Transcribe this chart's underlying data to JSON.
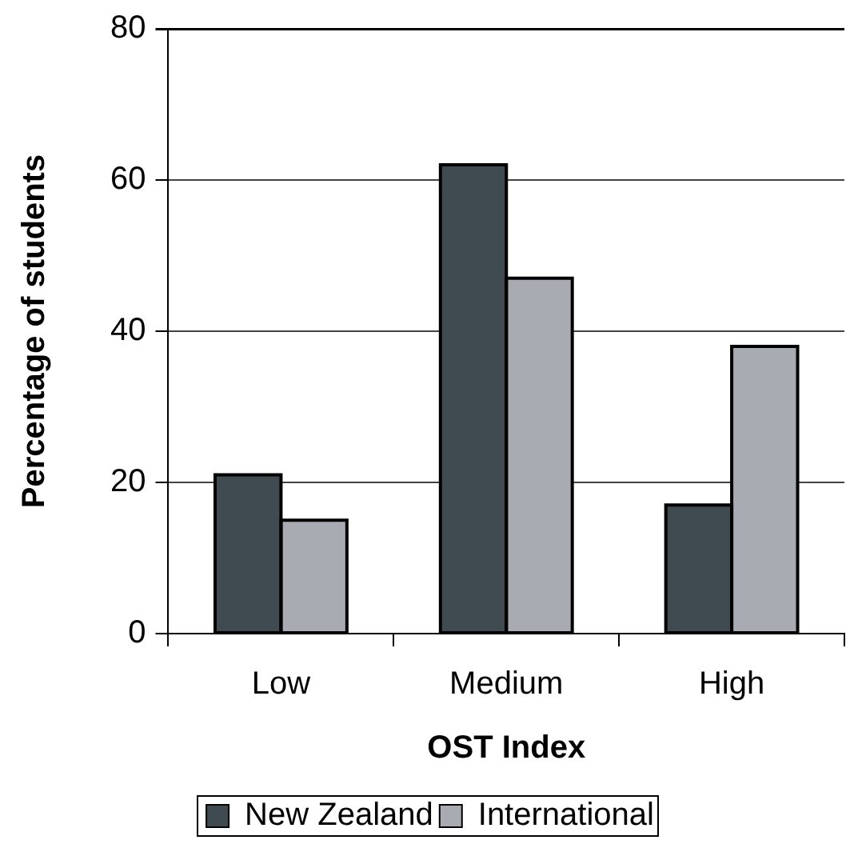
{
  "chart_data": {
    "type": "bar",
    "xlabel": "OST Index",
    "ylabel": "Percentage of students",
    "categories": [
      "Low",
      "Medium",
      "High"
    ],
    "series": [
      {
        "name": "New Zealand",
        "color": "#3f4a51",
        "values": [
          21,
          62,
          17
        ]
      },
      {
        "name": "International",
        "color": "#a8abb2",
        "values": [
          15,
          47,
          38
        ]
      }
    ],
    "ylim": [
      0,
      80
    ],
    "yticks": [
      0,
      20,
      40,
      60,
      80
    ],
    "grid": "y",
    "legend": "bottom"
  }
}
